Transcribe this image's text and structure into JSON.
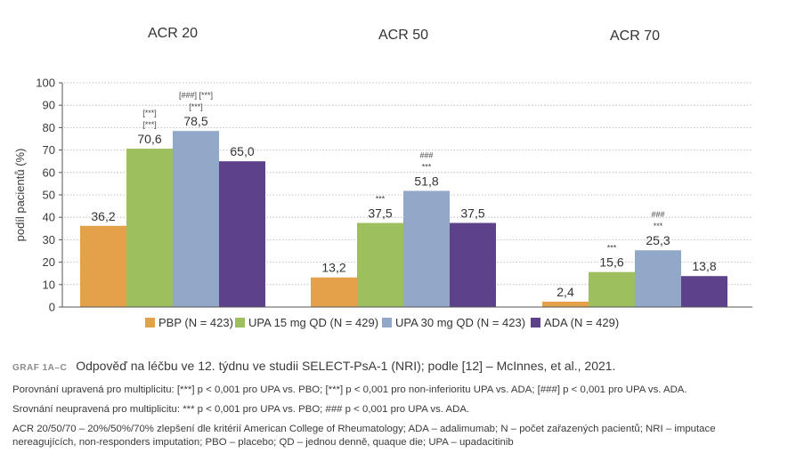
{
  "chart_data": {
    "type": "bar",
    "groups": [
      "ACR 20",
      "ACR 50",
      "ACR 70"
    ],
    "ylabel": "podíl pacientů (%)",
    "ylim": [
      0,
      100
    ],
    "yticks": [
      0,
      10,
      20,
      30,
      40,
      50,
      60,
      70,
      80,
      90,
      100
    ],
    "grid": true,
    "legend_position": "bottom",
    "series": [
      {
        "name": "PBP (N = 423)",
        "color": "#e5a04a",
        "values": [
          36.2,
          13.2,
          2.4
        ],
        "labels": [
          "36,2",
          "13,2",
          "2,4"
        ]
      },
      {
        "name": "UPA 15 mg QD (N = 429)",
        "color": "#9dbf5d",
        "values": [
          70.6,
          37.5,
          15.6
        ],
        "labels": [
          "70,6",
          "37,5",
          "15,6"
        ]
      },
      {
        "name": "UPA 30 mg QD (N = 423)",
        "color": "#91a8c9",
        "values": [
          78.5,
          51.8,
          25.3
        ],
        "labels": [
          "78,5",
          "51,8",
          "25,3"
        ]
      },
      {
        "name": "ADA (N = 429)",
        "color": "#5e4289",
        "values": [
          65.0,
          37.5,
          13.8
        ],
        "labels": [
          "65,0",
          "37,5",
          "13,8"
        ]
      }
    ],
    "annotations": [
      {
        "group": 0,
        "series": 1,
        "lines": [
          "[***]",
          "[***]"
        ]
      },
      {
        "group": 0,
        "series": 2,
        "lines": [
          "[###] [***]",
          "[***]"
        ]
      },
      {
        "group": 1,
        "series": 1,
        "lines": [
          "***"
        ]
      },
      {
        "group": 1,
        "series": 2,
        "lines": [
          "###",
          "***"
        ]
      },
      {
        "group": 2,
        "series": 1,
        "lines": [
          "***"
        ]
      },
      {
        "group": 2,
        "series": 2,
        "lines": [
          "###",
          "***"
        ]
      }
    ]
  },
  "caption": {
    "tag": "GRAF 1A–C",
    "title": "Odpověď na léčbu ve 12. týdnu ve studii SELECT-PsA-1 (NRI); podle [12] – McInnes, et al., 2021.",
    "note1": "Porovnání upravená pro multiplicitu: [***] p < 0,001 pro UPA vs. PBO; [***] p < 0,001 pro non-inferioritu UPA vs. ADA; [###] p < 0,001 pro UPA vs. ADA.",
    "note2": "Srovnání neupravená pro multiplicitu: *** p < 0,001 pro UPA vs. PBO; ### p < 0,001 pro UPA vs. ADA.",
    "abbr": "ACR 20/50/70 – 20%/50%/70% zlepšení dle kritérií American College of Rheumatology; ADA – adalimumab; N – počet zařazených pacientů; NRI – imputace nereagujících, non-responders imputation; PBO – placebo; QD – jednou denně, quaque die; UPA – upadacitinib"
  }
}
